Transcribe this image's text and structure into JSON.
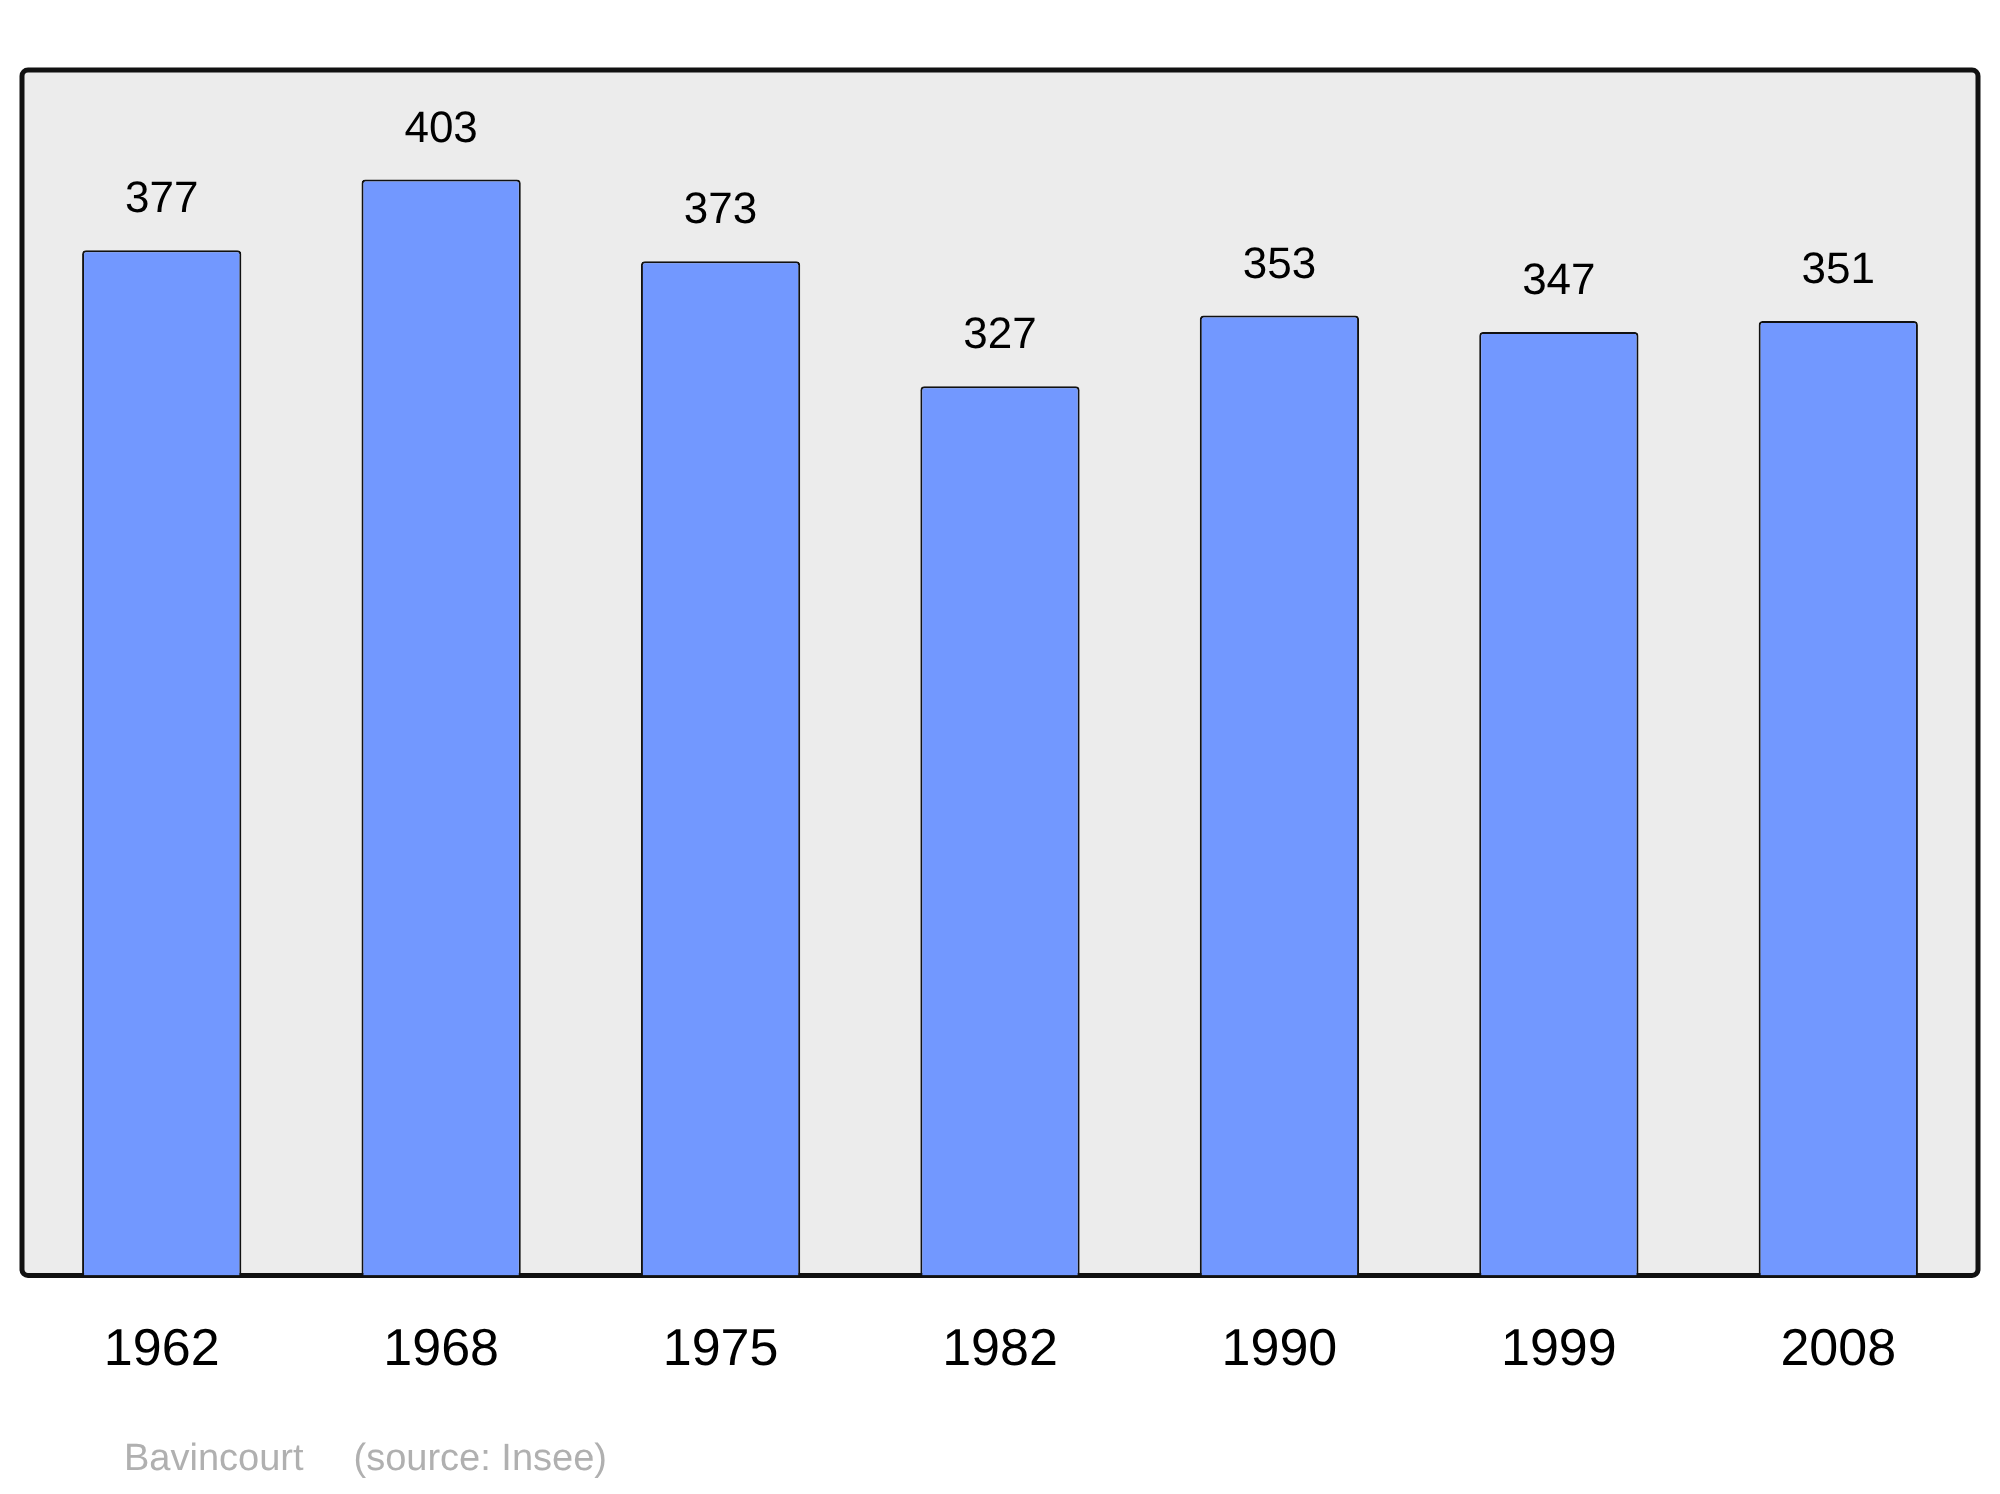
{
  "chart_data": {
    "type": "bar",
    "categories": [
      "1962",
      "1968",
      "1975",
      "1982",
      "1990",
      "1999",
      "2008"
    ],
    "values": [
      377,
      403,
      373,
      327,
      353,
      347,
      351
    ],
    "color": "#7298ff",
    "data_labels": true,
    "grid": false,
    "legend": false,
    "annotations": [
      "Bavincourt",
      "(source: Insee)"
    ]
  }
}
